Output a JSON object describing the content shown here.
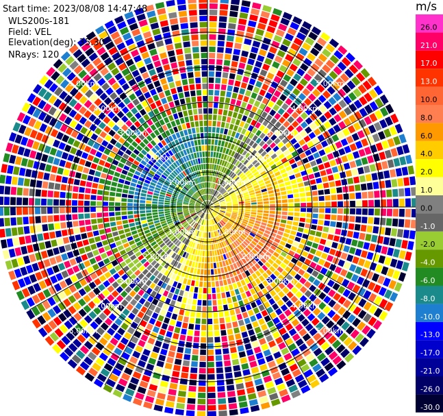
{
  "header": {
    "start_time": "Start time: 2023/08/08 14:47:48",
    "instrument": "WLS200s-181",
    "field": "Field: VEL",
    "elevation": "Elevation(deg): 35.30",
    "nrays": "NRays: 120"
  },
  "colorbar": {
    "title": "m/s",
    "bins": [
      {
        "label": "26.0",
        "color": "#ff33cc"
      },
      {
        "label": "21.0",
        "color": "#ff0066"
      },
      {
        "label": "17.0",
        "color": "#ff0000"
      },
      {
        "label": "13.0",
        "color": "#ff3300"
      },
      {
        "label": "10.0",
        "color": "#ff6633"
      },
      {
        "label": "8.0",
        "color": "#ff7f50"
      },
      {
        "label": "6.0",
        "color": "#ff9900"
      },
      {
        "label": "4.0",
        "color": "#ffcc00"
      },
      {
        "label": "2.0",
        "color": "#ffff00"
      },
      {
        "label": "1.0",
        "color": "#ffff99"
      },
      {
        "label": "0.0",
        "color": "#808080"
      },
      {
        "label": "-1.0",
        "color": "#666666"
      },
      {
        "label": "-2.0",
        "color": "#99cc33"
      },
      {
        "label": "-4.0",
        "color": "#669900"
      },
      {
        "label": "-6.0",
        "color": "#228b22"
      },
      {
        "label": "-8.0",
        "color": "#1a8a8a"
      },
      {
        "label": "-10.0",
        "color": "#1e7fd0"
      },
      {
        "label": "-13.0",
        "color": "#0000ff"
      },
      {
        "label": "-17.0",
        "color": "#0000cc"
      },
      {
        "label": "-21.0",
        "color": "#000099"
      },
      {
        "label": "-26.0",
        "color": "#000066"
      },
      {
        "label": "-30.0",
        "color": "#000033"
      }
    ]
  },
  "chart_data": {
    "type": "heatmap",
    "projection": "polar PPI",
    "field": "VEL",
    "units": "m/s",
    "n_rays": 120,
    "elevation_deg": 35.3,
    "range_rings": [
      "1.00km",
      "2.00km",
      "3.00km",
      "4.00km",
      "5.00km"
    ],
    "range_rings_km": [
      1,
      2,
      3,
      4,
      5
    ],
    "max_range_km": 6.0,
    "value_range": [
      -30.0,
      26.0
    ],
    "pattern": {
      "north_west": "negative (greens and blues, minimum near -10)",
      "south_east": "positive (yellow, orange and red, maximum near 10)",
      "outer_ranges": "noisy, random values across full scale"
    }
  }
}
